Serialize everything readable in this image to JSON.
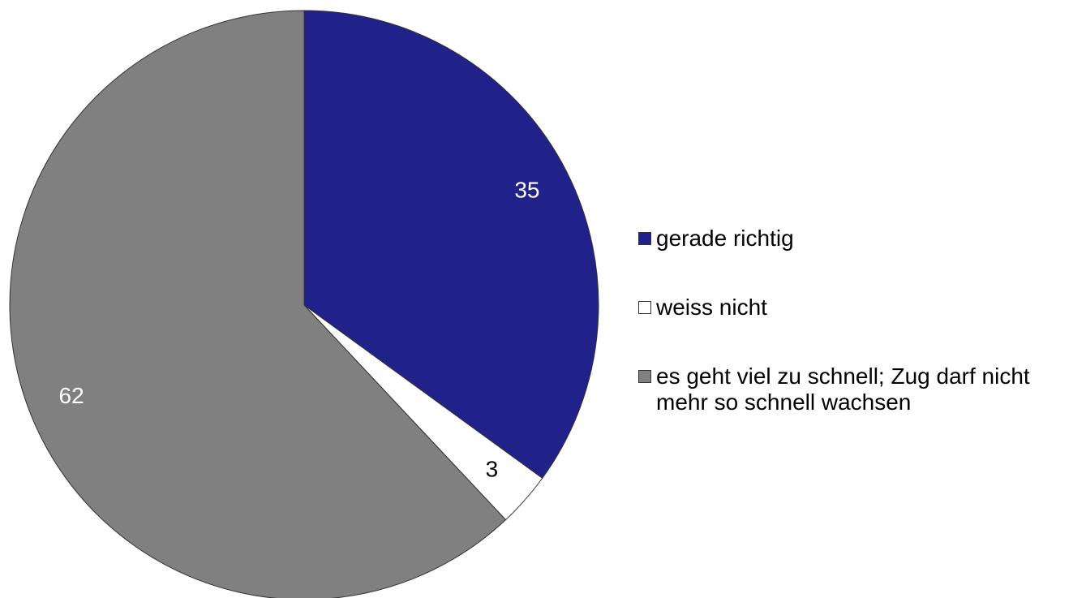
{
  "chart_data": {
    "type": "pie",
    "categories": [
      "gerade richtig",
      "weiss nicht",
      "es geht viel zu schnell; Zug darf nicht mehr so schnell wachsen"
    ],
    "values": [
      35,
      3,
      62
    ],
    "colors": [
      "#21218a",
      "#ffffff",
      "#808080"
    ],
    "label_colors": [
      "#ffffff",
      "#000000",
      "#ffffff"
    ],
    "legend": "right"
  }
}
